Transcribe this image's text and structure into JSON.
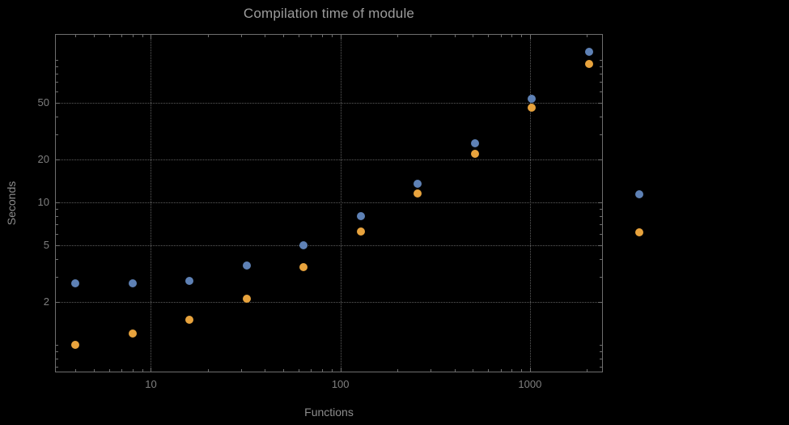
{
  "chart_data": {
    "type": "scatter",
    "title": "Compilation time of module",
    "xlabel": "Functions",
    "ylabel": "Seconds",
    "x_scale": "log",
    "y_scale": "log",
    "x": [
      4,
      8,
      16,
      32,
      64,
      128,
      256,
      512,
      1024,
      2048
    ],
    "series": [
      {
        "name": "series-1-blue",
        "color": "#5e81b5",
        "values": [
          2.7,
          2.7,
          2.8,
          3.6,
          5.0,
          8.0,
          13.5,
          26,
          53,
          114
        ]
      },
      {
        "name": "series-2-orange",
        "color": "#e8a33d",
        "values": [
          1.0,
          1.2,
          1.5,
          2.1,
          3.5,
          6.2,
          11.5,
          22,
          46,
          94
        ]
      }
    ],
    "x_ticks": [
      10,
      100,
      1000
    ],
    "x_tick_labels": [
      "10",
      "100",
      "1000"
    ],
    "y_ticks": [
      2,
      5,
      10,
      20,
      50
    ],
    "y_tick_labels": [
      "2",
      "5",
      "10",
      "20",
      "50"
    ],
    "xlim": [
      3.15,
      2450
    ],
    "ylim": [
      0.63,
      150
    ],
    "grid": "dotted major gridlines",
    "legend_position": "right-outside",
    "legend": [
      {
        "marker_color": "#5e81b5",
        "label": ""
      },
      {
        "marker_color": "#e8a33d",
        "label": ""
      }
    ]
  },
  "colors": {
    "background": "#000000",
    "frame": "#6e6e6e",
    "grid": "#5c5c5c",
    "tick": "#6e6e6e",
    "title_text": "#9c9c9c",
    "label_text": "#8c8c8c",
    "tick_text": "#7f7f7f"
  }
}
